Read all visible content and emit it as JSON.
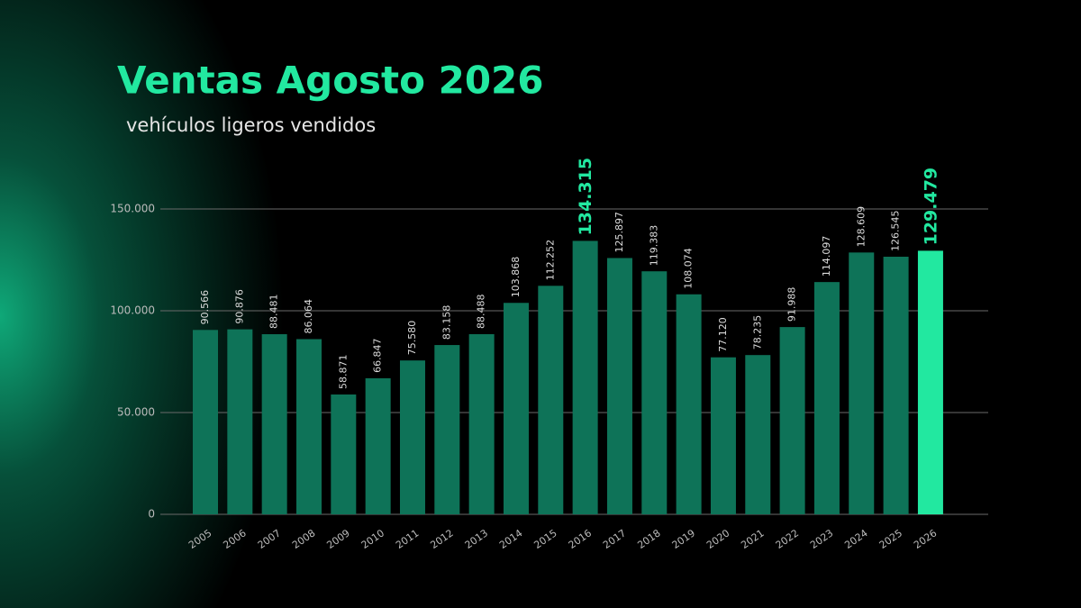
{
  "chart_data": {
    "type": "bar",
    "title": "Ventas Agosto 2026",
    "subtitle": "vehículos ligeros vendidos",
    "categories": [
      "2005",
      "2006",
      "2007",
      "2008",
      "2009",
      "2010",
      "2011",
      "2012",
      "2013",
      "2014",
      "2015",
      "2016",
      "2017",
      "2018",
      "2019",
      "2020",
      "2021",
      "2022",
      "2023",
      "2024",
      "2025",
      "2026"
    ],
    "values": [
      90566,
      90876,
      88481,
      86064,
      58871,
      66847,
      75580,
      83158,
      88488,
      103868,
      112252,
      134315,
      125897,
      119383,
      108074,
      77120,
      78235,
      91988,
      114097,
      128609,
      126545,
      129479
    ],
    "value_labels": [
      "90.566",
      "90.876",
      "88.481",
      "86.064",
      "58.871",
      "66.847",
      "75.580",
      "83.158",
      "88.488",
      "103.868",
      "112.252",
      "134.315",
      "125.897",
      "119.383",
      "108.074",
      "77.120",
      "78.235",
      "91.988",
      "114.097",
      "128.609",
      "126.545",
      "129.479"
    ],
    "bar_colors": [
      "#0e7358",
      "#0e7358",
      "#0e7358",
      "#0e7358",
      "#0e7358",
      "#0e7358",
      "#0e7358",
      "#0e7358",
      "#0e7358",
      "#0e7358",
      "#0e7358",
      "#0e7358",
      "#0e7358",
      "#0e7358",
      "#0e7358",
      "#0e7358",
      "#0e7358",
      "#0e7358",
      "#0e7358",
      "#0e7358",
      "#0e7358",
      "#22e8a0"
    ],
    "label_colors": [
      "#dddddd",
      "#dddddd",
      "#dddddd",
      "#dddddd",
      "#dddddd",
      "#dddddd",
      "#dddddd",
      "#dddddd",
      "#dddddd",
      "#dddddd",
      "#dddddd",
      "#22e8a0",
      "#dddddd",
      "#dddddd",
      "#dddddd",
      "#dddddd",
      "#dddddd",
      "#dddddd",
      "#dddddd",
      "#dddddd",
      "#dddddd",
      "#22e8a0"
    ],
    "ylim": [
      0,
      150000
    ],
    "yticks": [
      0,
      {
        "value": 50000,
        "label": "50.000"
      },
      {
        "value": 100000,
        "label": "100.000"
      },
      {
        "value": 150000,
        "label": "150.000"
      }
    ],
    "grid": true
  }
}
